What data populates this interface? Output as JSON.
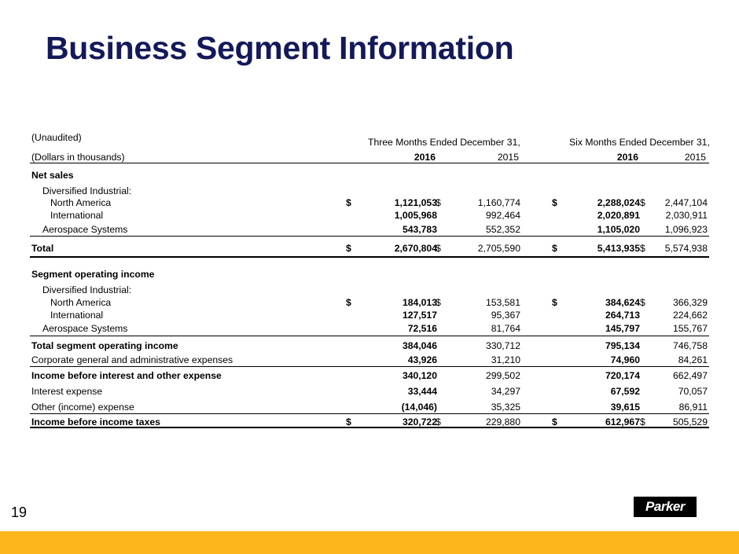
{
  "title": "Business Segment Information",
  "page_number": "19",
  "logo_text": "Parker",
  "header": {
    "unaudited": "(Unaudited)",
    "dollars": "(Dollars in thousands)",
    "three_months": "Three Months Ended December 31,",
    "six_months": "Six Months Ended December 31,",
    "years": [
      "2016",
      "2015",
      "2016",
      "2015"
    ]
  },
  "rows": [
    {
      "label": "Net sales",
      "bold": true,
      "indent": 0,
      "values": []
    },
    {
      "label": "Diversified Industrial:",
      "indent": 1,
      "values": []
    },
    {
      "label": "North America",
      "indent": 2,
      "dollar": true,
      "values": [
        "1,121,053",
        "1,160,774",
        "2,288,024",
        "2,447,104"
      ]
    },
    {
      "label": "International",
      "indent": 2,
      "values": [
        "1,005,968",
        "992,464",
        "2,020,891",
        "2,030,911"
      ]
    },
    {
      "label": "Aerospace Systems",
      "indent": 1,
      "values": [
        "543,783",
        "552,352",
        "1,105,020",
        "1,096,923"
      ]
    },
    {
      "label": "Total",
      "bold": true,
      "indent": 0,
      "dollar": true,
      "values": [
        "2,670,804",
        "2,705,590",
        "5,413,935",
        "5,574,938"
      ]
    },
    {
      "label": "Segment operating income",
      "bold": true,
      "indent": 0,
      "values": []
    },
    {
      "label": "Diversified Industrial:",
      "indent": 1,
      "values": []
    },
    {
      "label": "North America",
      "indent": 2,
      "dollar": true,
      "values": [
        "184,013",
        "153,581",
        "384,624",
        "366,329"
      ]
    },
    {
      "label": "International",
      "indent": 2,
      "values": [
        "127,517",
        "95,367",
        "264,713",
        "224,662"
      ]
    },
    {
      "label": "Aerospace Systems",
      "indent": 1,
      "values": [
        "72,516",
        "81,764",
        "145,797",
        "155,767"
      ]
    },
    {
      "label": "Total segment operating income",
      "bold": true,
      "indent": 0,
      "values": [
        "384,046",
        "330,712",
        "795,134",
        "746,758"
      ]
    },
    {
      "label": "Corporate general and administrative expenses",
      "indent": 0,
      "values": [
        "43,926",
        "31,210",
        "74,960",
        "84,261"
      ]
    },
    {
      "label": "Income before interest and other expense",
      "bold": true,
      "indent": 0,
      "values": [
        "340,120",
        "299,502",
        "720,174",
        "662,497"
      ]
    },
    {
      "label": "Interest expense",
      "indent": 0,
      "values": [
        "33,444",
        "34,297",
        "67,592",
        "70,057"
      ]
    },
    {
      "label": "Other (income) expense",
      "indent": 0,
      "values": [
        "(14,046)",
        "35,325",
        "39,615",
        "86,911"
      ]
    },
    {
      "label": "Income before income taxes",
      "bold": true,
      "indent": 0,
      "dollar": true,
      "values": [
        "320,722",
        "229,880",
        "612,967",
        "505,529"
      ]
    }
  ],
  "currency_symbol": "$"
}
